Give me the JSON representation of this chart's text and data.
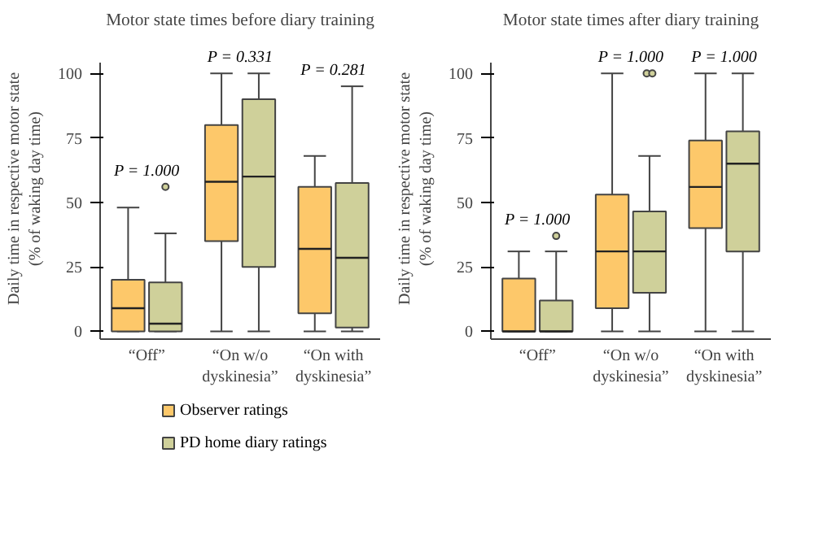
{
  "chart_data": [
    {
      "type": "box",
      "title": "Motor state times before diary training",
      "ylabel": "Daily time in respective motor state\n(% of waking day time)",
      "categories": [
        "“Off”",
        "“On w/o\ndyskinesia”",
        "“On with\ndyskinesia”"
      ],
      "ylim": [
        -3,
        104
      ],
      "yticks": [
        0,
        25,
        50,
        75,
        100
      ],
      "grid": false,
      "legend": "bottom",
      "series": [
        {
          "name": "Observer ratings",
          "color": "#fdc86a",
          "boxes": [
            {
              "low": 0,
              "q1": 0,
              "median": 9,
              "q3": 20,
              "high": 48
            },
            {
              "low": 0,
              "q1": 35,
              "median": 58,
              "q3": 80,
              "high": 100
            },
            {
              "low": 0,
              "q1": 7,
              "median": 32,
              "q3": 56,
              "high": 68
            }
          ]
        },
        {
          "name": "PD home diary ratings",
          "color": "#cfd09a",
          "boxes": [
            {
              "low": 0,
              "q1": 0,
              "median": 3,
              "q3": 19,
              "high": 38,
              "outliers": [
                56
              ]
            },
            {
              "low": 0,
              "q1": 25,
              "median": 60,
              "q3": 90,
              "high": 100
            },
            {
              "low": 0,
              "q1": 1.5,
              "median": 28.5,
              "q3": 57.5,
              "high": 95
            }
          ]
        }
      ],
      "annotations": [
        "P = 1.000",
        "P = 0.331",
        "P = 0.281"
      ]
    },
    {
      "type": "box",
      "title": "Motor state times after diary training",
      "ylabel": "Daily time in respective motor state\n(% of waking day time)",
      "categories": [
        "“Off”",
        "“On w/o\ndyskinesia”",
        "“On with\ndyskinesia”"
      ],
      "ylim": [
        -3,
        104
      ],
      "yticks": [
        0,
        25,
        50,
        75,
        100
      ],
      "grid": false,
      "series": [
        {
          "color": "#fdc86a",
          "boxes": [
            {
              "low": 0,
              "q1": 0,
              "median": 0,
              "q3": 20.5,
              "high": 31
            },
            {
              "low": 0,
              "q1": 9,
              "median": 31,
              "q3": 53,
              "high": 100
            },
            {
              "low": 0,
              "q1": 40,
              "median": 56,
              "q3": 74,
              "high": 100
            }
          ]
        },
        {
          "color": "#cfd09a",
          "boxes": [
            {
              "low": 0,
              "q1": 0,
              "median": 0,
              "q3": 12,
              "high": 31,
              "outliers": [
                37
              ]
            },
            {
              "low": 0,
              "q1": 15,
              "median": 31,
              "q3": 46.5,
              "high": 68,
              "outliers": [
                100,
                100
              ]
            },
            {
              "low": 0,
              "q1": 31,
              "median": 65,
              "q3": 77.5,
              "high": 100
            }
          ]
        }
      ],
      "annotations": [
        "P = 1.000",
        "P = 1.000",
        "P = 1.000"
      ]
    }
  ]
}
